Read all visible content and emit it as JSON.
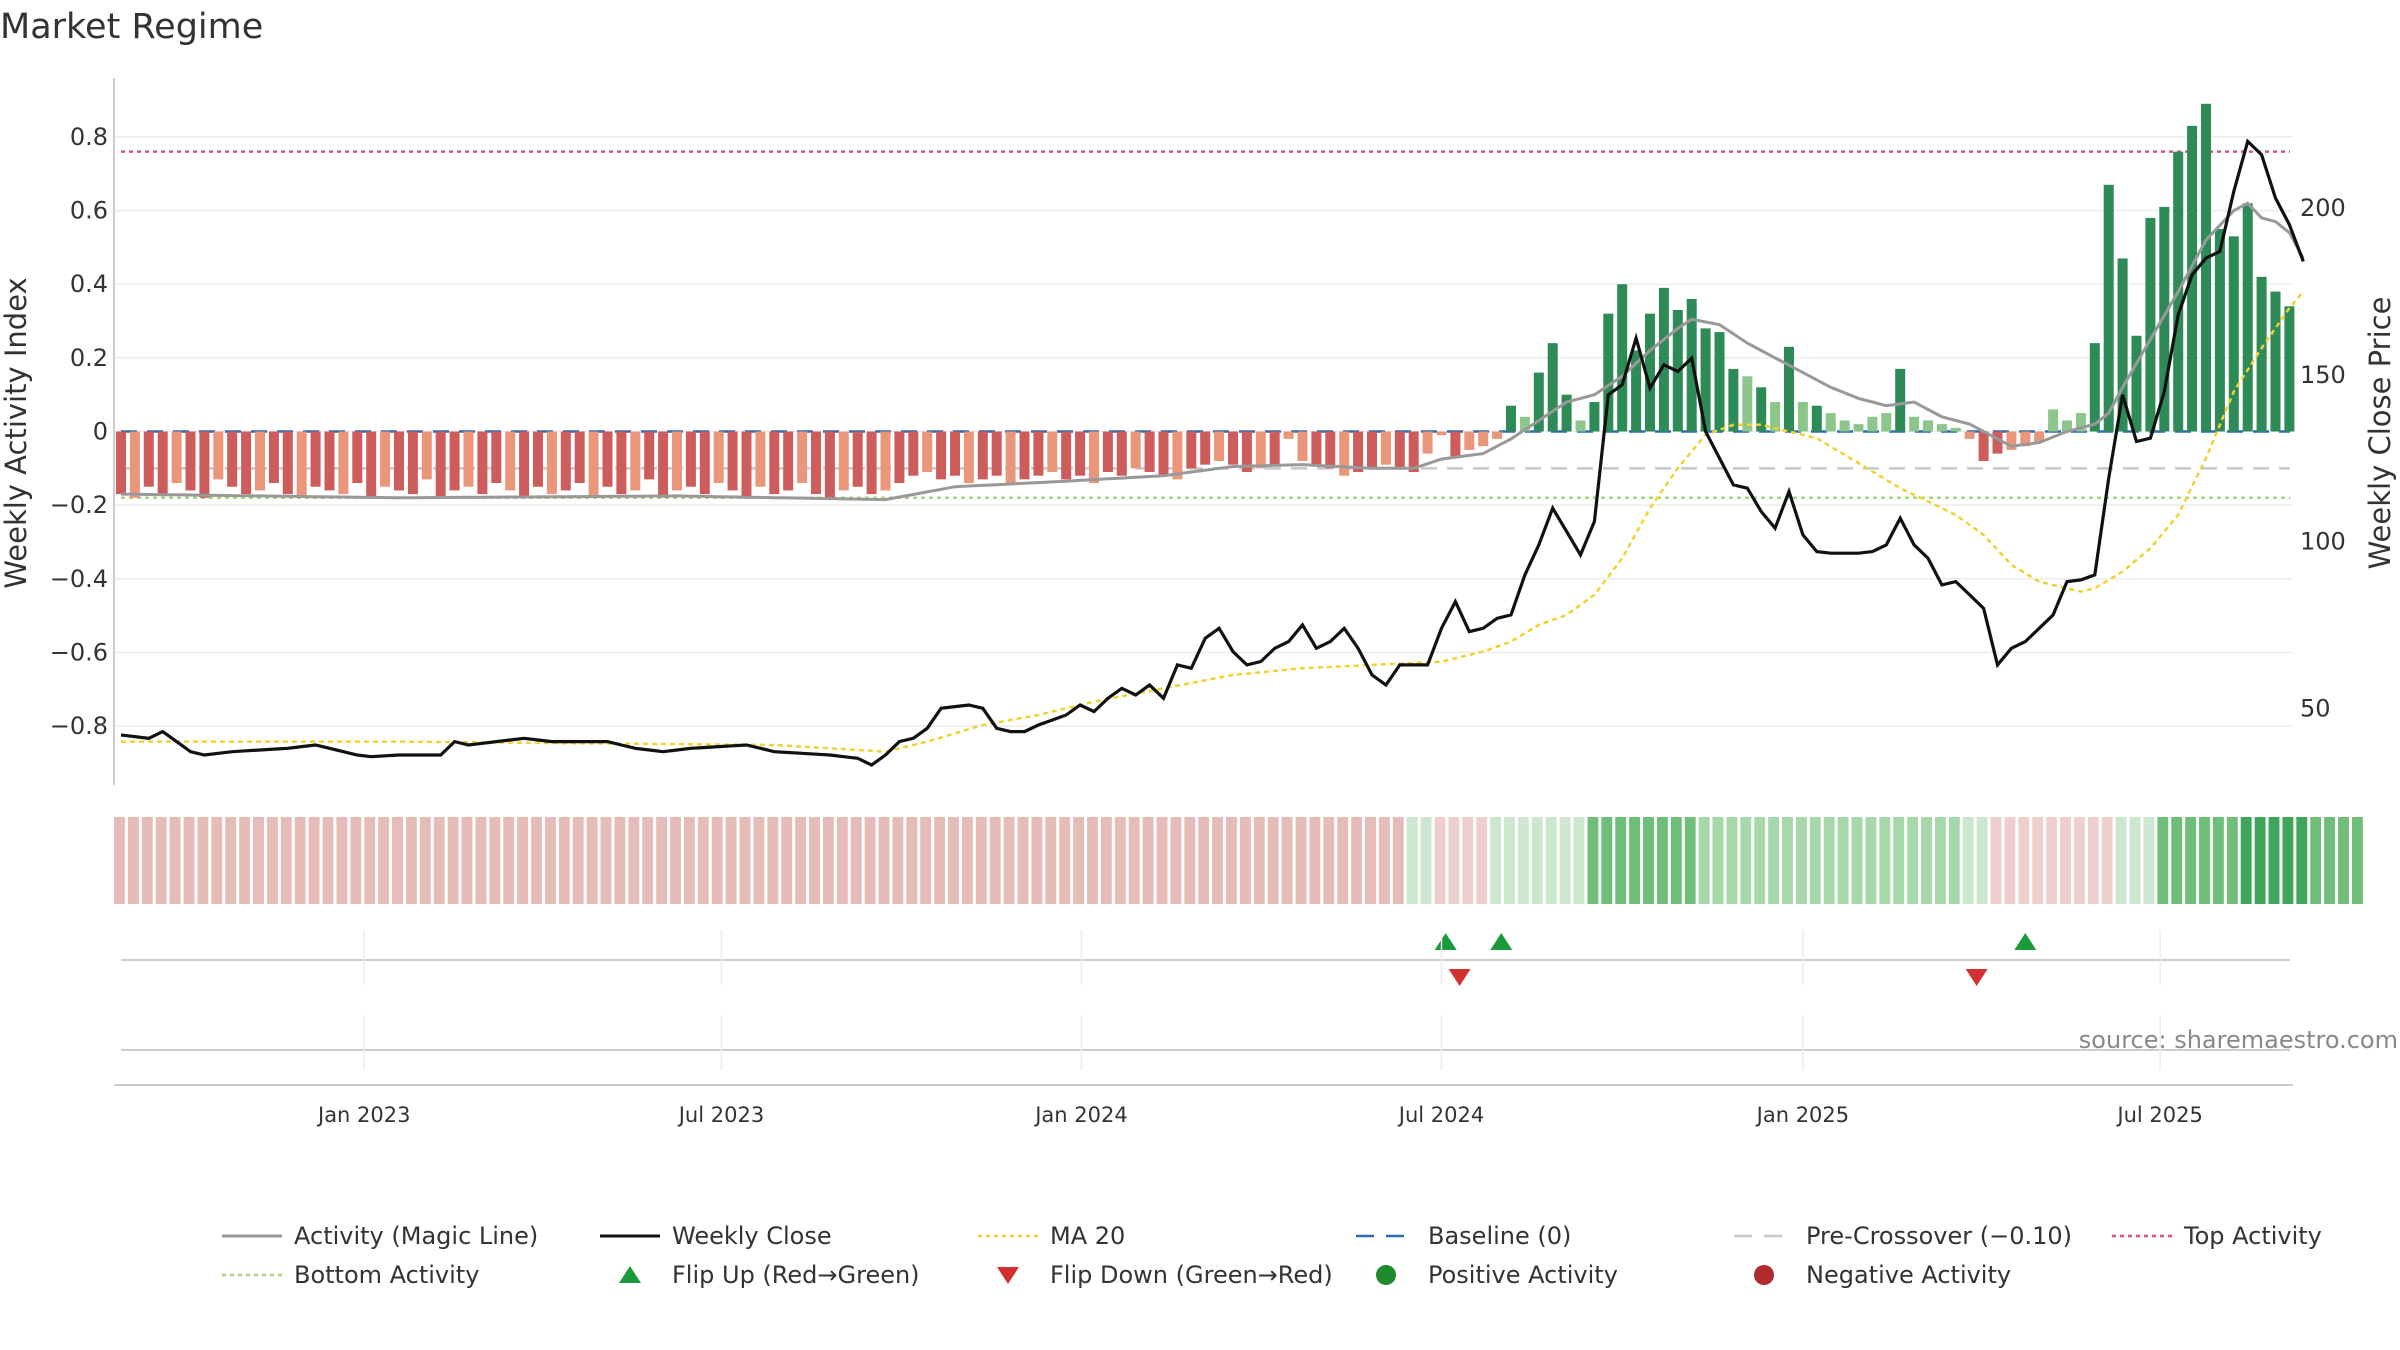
{
  "chart_data": {
    "type": "bar",
    "title": "Market Regime",
    "ylabel_left": "Weekly Activity Index",
    "ylabel_right": "Weekly Close Price",
    "left_ticks": [
      "0.8",
      "0.6",
      "0.4",
      "0.2",
      "0",
      "−0.2",
      "−0.4",
      "−0.6",
      "−0.8"
    ],
    "left_tick_values": [
      0.8,
      0.6,
      0.4,
      0.2,
      0,
      -0.2,
      -0.4,
      -0.6,
      -0.8
    ],
    "right_ticks": [
      "200",
      "150",
      "100",
      "50"
    ],
    "right_tick_values": [
      200,
      150,
      100,
      50
    ],
    "ylim_left": [
      -0.96,
      0.96
    ],
    "ylim_right": [
      27,
      239
    ],
    "x_ticks": [
      "Jan 2023",
      "Jul 2023",
      "Jan 2024",
      "Jul 2024",
      "Jan 2025",
      "Jul 2025"
    ],
    "x_tick_weeks": [
      17.5,
      43.2,
      69.1,
      95,
      121,
      146.7
    ],
    "n_weeks": 156,
    "first_week": "2022-09-05",
    "reference_lines": {
      "top_activity": 0.76,
      "pre_crossover": -0.1,
      "baseline": 0,
      "bottom_activity": -0.18
    },
    "close_keypoints": [
      [
        0,
        42
      ],
      [
        2,
        41
      ],
      [
        3,
        43
      ],
      [
        5,
        37
      ],
      [
        6,
        36
      ],
      [
        8,
        37
      ],
      [
        12,
        38
      ],
      [
        14,
        39
      ],
      [
        17,
        36
      ],
      [
        18,
        35.5
      ],
      [
        20,
        36
      ],
      [
        23,
        36
      ],
      [
        24,
        40
      ],
      [
        25,
        39
      ],
      [
        27,
        40
      ],
      [
        29,
        41
      ],
      [
        31,
        40
      ],
      [
        35,
        40
      ],
      [
        37,
        38
      ],
      [
        39,
        37
      ],
      [
        41,
        38
      ],
      [
        45,
        39
      ],
      [
        47,
        37
      ],
      [
        51,
        36
      ],
      [
        53,
        35
      ],
      [
        54,
        33
      ],
      [
        55,
        36
      ],
      [
        56,
        40
      ],
      [
        57,
        41
      ],
      [
        58,
        44
      ],
      [
        59,
        50
      ],
      [
        61,
        51
      ],
      [
        62,
        50
      ],
      [
        63,
        44
      ],
      [
        64,
        43
      ],
      [
        65,
        43
      ],
      [
        66,
        45
      ],
      [
        68,
        48
      ],
      [
        69,
        51
      ],
      [
        70,
        49
      ],
      [
        71,
        53
      ],
      [
        72,
        56
      ],
      [
        73,
        54
      ],
      [
        74,
        57
      ],
      [
        75,
        53
      ],
      [
        76,
        63
      ],
      [
        77,
        62
      ],
      [
        78,
        71
      ],
      [
        79,
        74
      ],
      [
        80,
        67
      ],
      [
        81,
        63
      ],
      [
        82,
        64
      ],
      [
        83,
        68
      ],
      [
        84,
        70
      ],
      [
        85,
        75
      ],
      [
        86,
        68
      ],
      [
        87,
        70
      ],
      [
        88,
        74
      ],
      [
        89,
        68
      ],
      [
        90,
        60
      ],
      [
        91,
        57
      ],
      [
        92,
        63
      ],
      [
        93,
        63
      ],
      [
        94,
        63
      ],
      [
        95,
        74
      ],
      [
        96,
        82
      ],
      [
        97,
        73
      ],
      [
        98,
        74
      ],
      [
        99,
        77
      ],
      [
        100,
        78
      ],
      [
        101,
        90
      ],
      [
        102,
        99
      ],
      [
        103,
        110
      ],
      [
        104,
        103
      ],
      [
        105,
        96
      ],
      [
        106,
        106
      ],
      [
        107,
        144
      ],
      [
        108,
        147
      ],
      [
        109,
        161
      ],
      [
        110,
        146
      ],
      [
        111,
        153
      ],
      [
        112,
        151
      ],
      [
        113,
        155
      ],
      [
        114,
        133
      ],
      [
        115,
        125
      ],
      [
        116,
        117
      ],
      [
        117,
        116
      ],
      [
        118,
        109
      ],
      [
        119,
        104
      ],
      [
        120,
        115
      ],
      [
        121,
        102
      ],
      [
        122,
        97
      ],
      [
        123,
        96.5
      ],
      [
        125,
        96.5
      ],
      [
        126,
        97
      ],
      [
        127,
        99
      ],
      [
        128,
        107
      ],
      [
        129,
        99
      ],
      [
        130,
        95
      ],
      [
        131,
        87
      ],
      [
        132,
        88
      ],
      [
        133,
        84
      ],
      [
        134,
        80
      ],
      [
        135,
        63
      ],
      [
        136,
        68
      ],
      [
        137,
        70
      ],
      [
        138,
        74
      ],
      [
        139,
        78
      ],
      [
        140,
        88
      ],
      [
        141,
        88.5
      ],
      [
        142,
        90
      ],
      [
        143,
        119
      ],
      [
        144,
        144
      ],
      [
        145,
        130
      ],
      [
        146,
        131
      ],
      [
        147,
        145
      ],
      [
        148,
        168
      ],
      [
        149,
        180
      ],
      [
        150,
        185
      ],
      [
        151,
        187
      ],
      [
        152,
        205
      ],
      [
        153,
        220
      ],
      [
        154,
        216
      ],
      [
        155,
        203
      ],
      [
        156,
        195
      ],
      [
        157,
        184
      ]
    ],
    "ma20_keypoints": [
      [
        0,
        40
      ],
      [
        20,
        40
      ],
      [
        47,
        39
      ],
      [
        55,
        37
      ],
      [
        58,
        40
      ],
      [
        62,
        45
      ],
      [
        66,
        48
      ],
      [
        70,
        52
      ],
      [
        75,
        56
      ],
      [
        80,
        60
      ],
      [
        85,
        62
      ],
      [
        90,
        63
      ],
      [
        95,
        64
      ],
      [
        98,
        67
      ],
      [
        100,
        70
      ],
      [
        102,
        75
      ],
      [
        104,
        78
      ],
      [
        106,
        84
      ],
      [
        108,
        95
      ],
      [
        110,
        110
      ],
      [
        112,
        122
      ],
      [
        114,
        132
      ],
      [
        116,
        135
      ],
      [
        118,
        135
      ],
      [
        120,
        133
      ],
      [
        122,
        131
      ],
      [
        124,
        126
      ],
      [
        126,
        121
      ],
      [
        128,
        116
      ],
      [
        130,
        112
      ],
      [
        132,
        108
      ],
      [
        134,
        102
      ],
      [
        136,
        93
      ],
      [
        138,
        88
      ],
      [
        140,
        86
      ],
      [
        141,
        85
      ],
      [
        142,
        86
      ],
      [
        144,
        91
      ],
      [
        146,
        98
      ],
      [
        148,
        108
      ],
      [
        150,
        125
      ],
      [
        152,
        145
      ],
      [
        154,
        158
      ],
      [
        156,
        170
      ],
      [
        157,
        175
      ]
    ],
    "magic_keypoints": [
      [
        0,
        -0.17
      ],
      [
        20,
        -0.18
      ],
      [
        40,
        -0.175
      ],
      [
        55,
        -0.185
      ],
      [
        60,
        -0.15
      ],
      [
        68,
        -0.135
      ],
      [
        75,
        -0.12
      ],
      [
        80,
        -0.095
      ],
      [
        85,
        -0.09
      ],
      [
        90,
        -0.1
      ],
      [
        93,
        -0.1
      ],
      [
        95,
        -0.075
      ],
      [
        98,
        -0.06
      ],
      [
        100,
        -0.02
      ],
      [
        102,
        0.03
      ],
      [
        104,
        0.08
      ],
      [
        106,
        0.1
      ],
      [
        108,
        0.15
      ],
      [
        110,
        0.22
      ],
      [
        112,
        0.28
      ],
      [
        113,
        0.305
      ],
      [
        115,
        0.29
      ],
      [
        117,
        0.24
      ],
      [
        119,
        0.2
      ],
      [
        121,
        0.16
      ],
      [
        123,
        0.12
      ],
      [
        125,
        0.09
      ],
      [
        127,
        0.07
      ],
      [
        129,
        0.08
      ],
      [
        131,
        0.04
      ],
      [
        133,
        0.02
      ],
      [
        135,
        -0.02
      ],
      [
        136,
        -0.04
      ],
      [
        138,
        -0.03
      ],
      [
        140,
        0.0
      ],
      [
        142,
        0.02
      ],
      [
        143,
        0.05
      ],
      [
        144,
        0.12
      ],
      [
        146,
        0.25
      ],
      [
        148,
        0.38
      ],
      [
        150,
        0.52
      ],
      [
        151,
        0.56
      ],
      [
        152,
        0.6
      ],
      [
        153,
        0.62
      ],
      [
        154,
        0.58
      ],
      [
        155,
        0.57
      ],
      [
        156,
        0.54
      ],
      [
        157,
        0.47
      ]
    ],
    "activity_bars": [
      -0.17,
      -0.18,
      -0.15,
      -0.17,
      -0.14,
      -0.16,
      -0.18,
      -0.13,
      -0.15,
      -0.17,
      -0.16,
      -0.14,
      -0.17,
      -0.18,
      -0.15,
      -0.16,
      -0.17,
      -0.14,
      -0.18,
      -0.15,
      -0.16,
      -0.17,
      -0.13,
      -0.18,
      -0.16,
      -0.15,
      -0.17,
      -0.14,
      -0.16,
      -0.18,
      -0.15,
      -0.17,
      -0.16,
      -0.14,
      -0.18,
      -0.15,
      -0.17,
      -0.16,
      -0.13,
      -0.18,
      -0.16,
      -0.15,
      -0.17,
      -0.14,
      -0.16,
      -0.18,
      -0.15,
      -0.17,
      -0.16,
      -0.14,
      -0.17,
      -0.18,
      -0.16,
      -0.15,
      -0.17,
      -0.16,
      -0.14,
      -0.12,
      -0.11,
      -0.13,
      -0.12,
      -0.14,
      -0.13,
      -0.12,
      -0.14,
      -0.13,
      -0.12,
      -0.11,
      -0.13,
      -0.12,
      -0.14,
      -0.11,
      -0.12,
      -0.1,
      -0.11,
      -0.12,
      -0.13,
      -0.1,
      -0.09,
      -0.08,
      -0.09,
      -0.11,
      -0.1,
      -0.09,
      -0.02,
      -0.08,
      -0.09,
      -0.1,
      -0.12,
      -0.11,
      -0.1,
      -0.09,
      -0.1,
      -0.11,
      -0.06,
      -0.01,
      -0.07,
      -0.05,
      -0.04,
      -0.02,
      0.07,
      0.04,
      0.16,
      0.24,
      0.1,
      0.03,
      0.08,
      0.32,
      0.4,
      0.22,
      0.32,
      0.39,
      0.33,
      0.36,
      0.28,
      0.27,
      0.17,
      0.15,
      0.12,
      0.08,
      0.23,
      0.08,
      0.07,
      0.05,
      0.03,
      0.02,
      0.04,
      0.05,
      0.17,
      0.04,
      0.03,
      0.02,
      0.01,
      -0.02,
      -0.08,
      -0.06,
      -0.05,
      -0.04,
      -0.03,
      0.06,
      0.03,
      0.05,
      0.24,
      0.67,
      0.47,
      0.26,
      0.58,
      0.61,
      0.76,
      0.83,
      0.89,
      0.55,
      0.53,
      0.62,
      0.42,
      0.38,
      0.34
    ],
    "strip_levels": [
      -3,
      -3,
      -3,
      -3,
      -3,
      -3,
      -3,
      -3,
      -3,
      -3,
      -3,
      -3,
      -3,
      -3,
      -3,
      -3,
      -3,
      -3,
      -3,
      -3,
      -3,
      -3,
      -3,
      -3,
      -3,
      -3,
      -3,
      -3,
      -3,
      -3,
      -3,
      -3,
      -3,
      -3,
      -3,
      -3,
      -3,
      -3,
      -3,
      -3,
      -3,
      -3,
      -3,
      -3,
      -3,
      -3,
      -3,
      -3,
      -3,
      -3,
      -3,
      -3,
      -3,
      -3,
      -3,
      -3,
      -3,
      -3,
      -3,
      -3,
      -3,
      -3,
      -3,
      -3,
      -3,
      -3,
      -3,
      -3,
      -3,
      -3,
      -3,
      -3,
      -3,
      -3,
      -3,
      -3,
      -3,
      -3,
      -3,
      -3,
      -3,
      -3,
      -3,
      -3,
      -3,
      -3,
      -3,
      -3,
      -3,
      -3,
      -3,
      -3,
      -3,
      1,
      1,
      -2,
      -2,
      -2,
      -2,
      1,
      1,
      1,
      1,
      1,
      1,
      1,
      3,
      3,
      3,
      3,
      3,
      3,
      3,
      3,
      2,
      2,
      2,
      2,
      2,
      2,
      2,
      2,
      2,
      2,
      2,
      2,
      2,
      2,
      2,
      2,
      2,
      2,
      2,
      1,
      1,
      -2,
      -2,
      -2,
      -2,
      -2,
      -2,
      -2,
      -2,
      -2,
      1,
      1,
      1,
      3,
      3,
      3,
      3,
      3,
      3,
      4,
      4,
      4,
      4,
      4,
      3,
      3,
      3,
      3
    ],
    "flip_up_weeks": [
      95.3,
      99.3,
      137
    ],
    "flip_down_weeks": [
      96.3,
      133.5
    ],
    "source": "source: sharemaestro.com",
    "legend": [
      {
        "label": "Activity (Magic Line)",
        "style": "line",
        "color": "#999999"
      },
      {
        "label": "Weekly Close",
        "style": "line",
        "color": "#111111"
      },
      {
        "label": "MA 20",
        "style": "dotted",
        "color": "#f2d22e"
      },
      {
        "label": "Baseline (0)",
        "style": "dashed",
        "color": "#2b6cb0"
      },
      {
        "label": "Pre-Crossover (−0.10)",
        "style": "dashed",
        "color": "#c8c8c8"
      },
      {
        "label": "Top Activity",
        "style": "dotted",
        "color": "#d7587a"
      },
      {
        "label": "Bottom Activity",
        "style": "dotted",
        "color": "#a8d47a"
      },
      {
        "label": "Flip Up (Red→Green)",
        "style": "triangle-up",
        "color": "#1a9a3a"
      },
      {
        "label": "Flip Down (Green→Red)",
        "style": "triangle-down",
        "color": "#d0332f"
      },
      {
        "label": "Positive Activity",
        "style": "dot",
        "color": "#1f8a2e"
      },
      {
        "label": "Negative Activity",
        "style": "dot",
        "color": "#b02a30"
      }
    ],
    "colors": {
      "bar_positive_strong": "#2e8b57",
      "bar_positive_weak": "#8cc68a",
      "bar_negative_strong": "#cd5c5c",
      "bar_negative_weak": "#e9967a",
      "strip_negative": [
        "#e6bcb8",
        "#eecfcc",
        "#f3dcdc"
      ],
      "strip_positive": [
        "#cbe8cf",
        "#a6d8aa",
        "#6fbf7a",
        "#3fa55a"
      ]
    }
  }
}
